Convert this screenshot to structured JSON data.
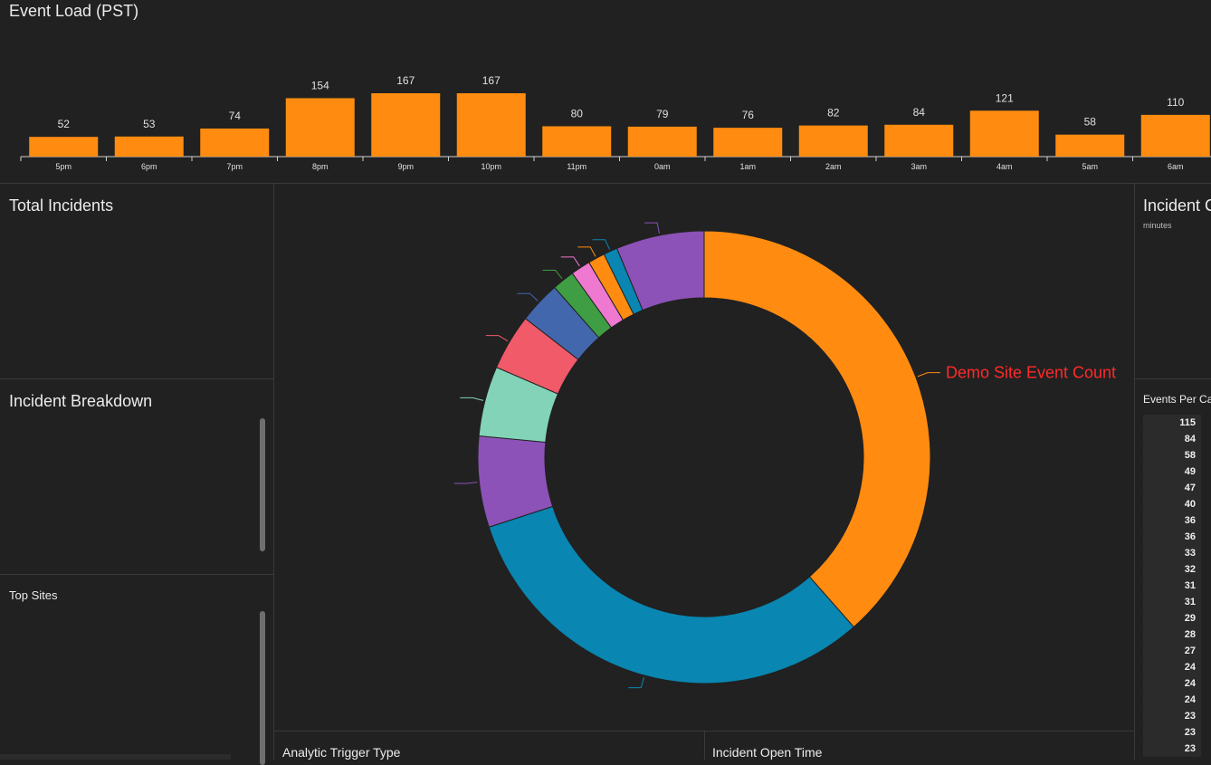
{
  "event_load": {
    "title": "Event Load (PST)"
  },
  "total_incidents": {
    "title": "Total Incidents"
  },
  "incident_breakdown": {
    "title": "Incident Breakdown"
  },
  "top_sites": {
    "title": "Top Sites"
  },
  "incident_panel": {
    "title": "Incident C",
    "subtitle": "minutes"
  },
  "events_per": {
    "title": "Events Per Ca",
    "values": [
      "115",
      "84",
      "58",
      "49",
      "47",
      "40",
      "36",
      "36",
      "33",
      "32",
      "31",
      "31",
      "29",
      "28",
      "27",
      "24",
      "24",
      "24",
      "23",
      "23",
      "23"
    ]
  },
  "bottom": {
    "analytic_trigger": "Analytic Trigger Type",
    "incident_open_time": "Incident Open Time"
  },
  "colors": {
    "background": "#212121",
    "bar": "#ff8c10",
    "donut_orange": "#ff8c10",
    "donut_blue": "#0986b1",
    "label_red": "#ff2a2a"
  },
  "chart_data": [
    {
      "type": "bar",
      "title": "Event Load (PST)",
      "categories": [
        "5pm",
        "6pm",
        "7pm",
        "8pm",
        "9pm",
        "10pm",
        "11pm",
        "0am",
        "1am",
        "2am",
        "3am",
        "4am",
        "5am",
        "6am"
      ],
      "values": [
        52,
        53,
        74,
        154,
        167,
        167,
        80,
        79,
        76,
        82,
        84,
        121,
        58,
        110
      ],
      "ylim": [
        0,
        167
      ],
      "grid": false,
      "data_labels": true
    },
    {
      "type": "pie",
      "donut": true,
      "labeled_slice": "Demo Site Event Count",
      "slices": [
        {
          "value": 38.5,
          "color": "#ff8c10"
        },
        {
          "value": 31.5,
          "color": "#0986b1"
        },
        {
          "value": 6.5,
          "color": "#8c52b7"
        },
        {
          "value": 5.0,
          "color": "#83d3b8"
        },
        {
          "value": 4.0,
          "color": "#f05a69"
        },
        {
          "value": 3.0,
          "color": "#4367ad"
        },
        {
          "value": 1.6,
          "color": "#3f9e43"
        },
        {
          "value": 1.4,
          "color": "#ef78d1"
        },
        {
          "value": 1.2,
          "color": "#ff8c10"
        },
        {
          "value": 1.0,
          "color": "#0986b1"
        },
        {
          "value": 6.3,
          "color": "#8c52b7"
        }
      ]
    }
  ]
}
